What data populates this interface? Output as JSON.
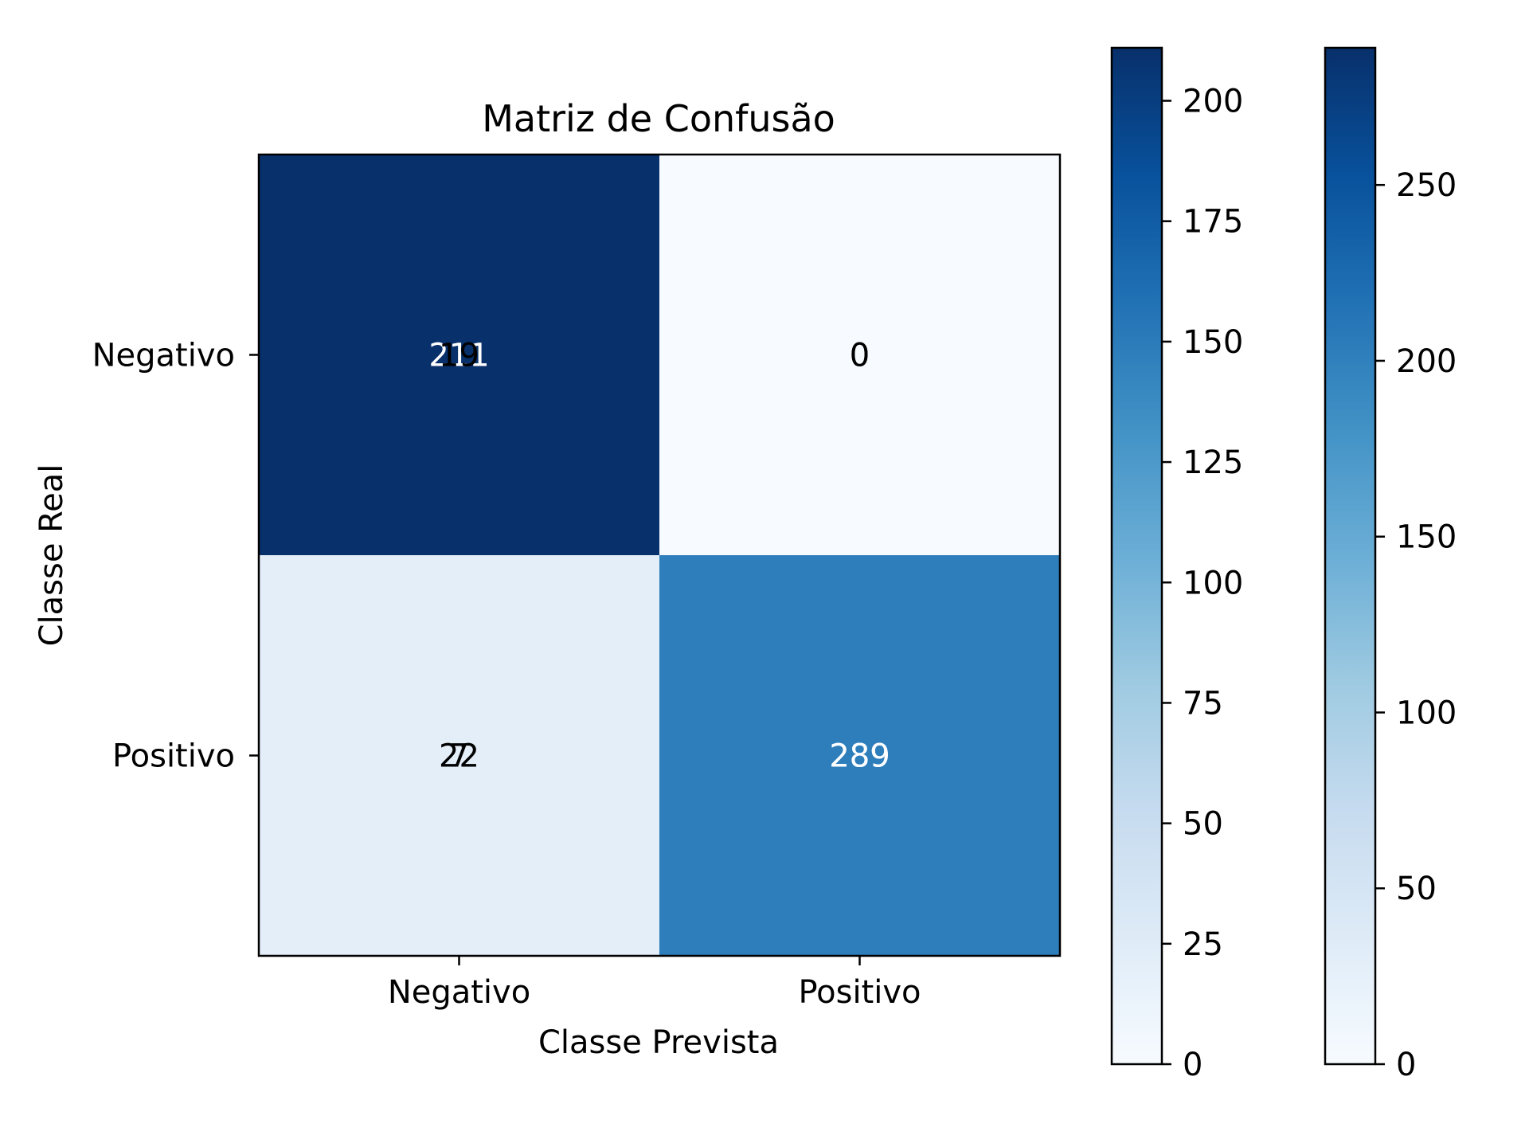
{
  "chart_data": {
    "type": "heatmap",
    "title": "Matriz de Confusão",
    "xlabel": "Classe Prevista",
    "ylabel": "Classe Real",
    "x_categories": [
      "Negativo",
      "Positivo"
    ],
    "y_categories": [
      "Negativo",
      "Positivo"
    ],
    "colormap": "Blues",
    "layers": [
      {
        "matrix": [
          [
            211,
            0
          ],
          [
            22,
            289
          ]
        ],
        "colorbar": {
          "min": 0,
          "max": 211,
          "ticks": [
            0,
            25,
            50,
            75,
            100,
            125,
            150,
            175,
            200
          ]
        }
      },
      {
        "matrix": [
          [
            19,
            0
          ],
          [
            7,
            289
          ]
        ],
        "colorbar": {
          "min": 0,
          "max": 289,
          "ticks": [
            0,
            50,
            100,
            150,
            200,
            250
          ]
        }
      }
    ],
    "displayed_cell_colors": [
      [
        "#08306b",
        "#f7fbff"
      ],
      [
        "#e3eef9",
        "#2f7ebc"
      ]
    ],
    "annotation_colors": {
      "light": "#ffffff",
      "dark": "#000000"
    },
    "grid": false
  }
}
